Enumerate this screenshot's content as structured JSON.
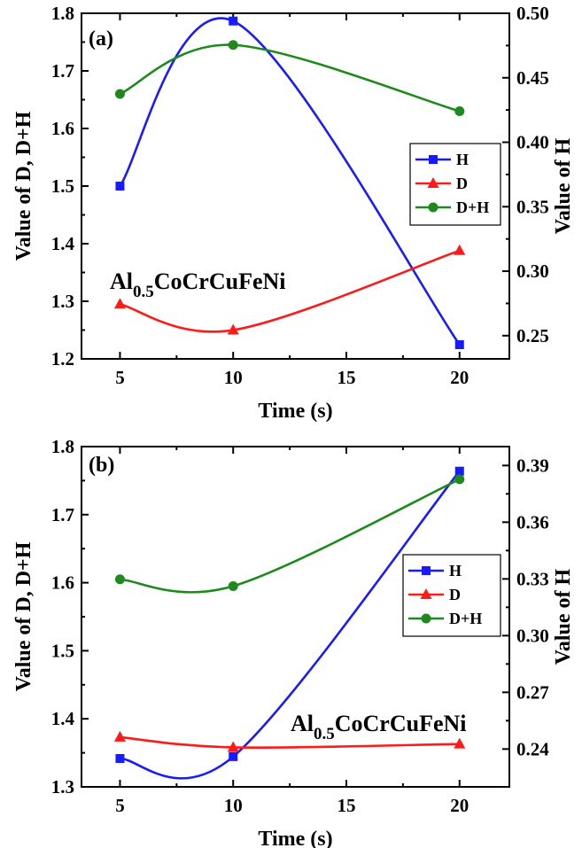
{
  "colors": {
    "H": "#1a1aff",
    "D": "#ff1a1a",
    "DH": "#1e8a1e"
  },
  "chart_data": [
    {
      "type": "line",
      "panel_label": "(a)",
      "annotation": {
        "main": "Al",
        "sub": "0.5",
        "rest": "CoCrCuFeNi"
      },
      "xlabel": "Time (s)",
      "ylabel": "Value of D, D+H",
      "y2label": "Value of H",
      "x": [
        5,
        10,
        20
      ],
      "xlim": [
        3.3,
        22.2
      ],
      "xticks": [
        5,
        10,
        15,
        20
      ],
      "ylim": [
        1.2,
        1.8
      ],
      "yticks": [
        "1.2",
        "1.3",
        "1.4",
        "1.5",
        "1.6",
        "1.7",
        "1.8"
      ],
      "y2lim": [
        0.232,
        0.5
      ],
      "y2ticks": [
        "0.25",
        "0.30",
        "0.35",
        "0.40",
        "0.45",
        "0.50"
      ],
      "legend_position": "right",
      "series": [
        {
          "name": "H",
          "axis": "right",
          "marker": "square",
          "color_key": "H",
          "values": [
            0.366,
            0.494,
            0.243
          ]
        },
        {
          "name": "D",
          "axis": "left",
          "marker": "triangle",
          "color_key": "D",
          "values": [
            1.295,
            1.25,
            1.388
          ]
        },
        {
          "name": "D+H",
          "axis": "left",
          "marker": "circle",
          "color_key": "DH",
          "values": [
            1.66,
            1.745,
            1.63
          ]
        }
      ]
    },
    {
      "type": "line",
      "panel_label": "(b)",
      "annotation": {
        "main": "Al",
        "sub": "0.5",
        "rest": "CoCrCuFeNi"
      },
      "xlabel": "Time (s)",
      "ylabel": "Value of D, D+H",
      "y2label": "Value of H",
      "x": [
        5,
        10,
        20
      ],
      "xlim": [
        3.3,
        22.2
      ],
      "xticks": [
        5,
        10,
        15,
        20
      ],
      "ylim": [
        1.3,
        1.8
      ],
      "yticks": [
        "1.3",
        "1.4",
        "1.5",
        "1.6",
        "1.7",
        "1.8"
      ],
      "y2lim": [
        0.22,
        0.4
      ],
      "y2ticks": [
        "0.24",
        "0.27",
        "0.30",
        "0.33",
        "0.36",
        "0.39"
      ],
      "legend_position": "right",
      "series": [
        {
          "name": "H",
          "axis": "right",
          "marker": "square",
          "color_key": "H",
          "values": [
            0.235,
            0.236,
            0.387
          ]
        },
        {
          "name": "D",
          "axis": "left",
          "marker": "triangle",
          "color_key": "D",
          "values": [
            1.373,
            1.358,
            1.363
          ]
        },
        {
          "name": "D+H",
          "axis": "left",
          "marker": "circle",
          "color_key": "DH",
          "values": [
            1.605,
            1.595,
            1.752
          ]
        }
      ]
    }
  ]
}
